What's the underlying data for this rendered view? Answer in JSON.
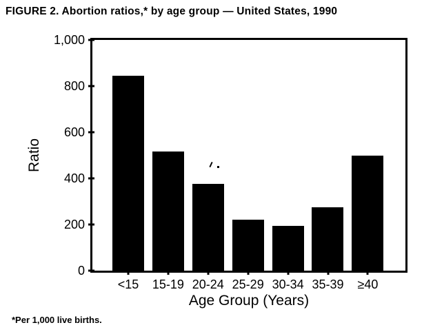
{
  "figure": {
    "title": "FIGURE 2. Abortion ratios,* by age group — United States, 1990",
    "footnote": "*Per 1,000 live births."
  },
  "chart_data": {
    "type": "bar",
    "title": "FIGURE 2. Abortion ratios,* by age group — United States, 1990",
    "categories": [
      "<15",
      "15-19",
      "20-24",
      "25-29",
      "30-34",
      "35-39",
      "≥40"
    ],
    "values": [
      845,
      515,
      375,
      220,
      195,
      275,
      500
    ],
    "xlabel": "Age Group (Years)",
    "ylabel": "Ratio",
    "ylim": [
      0,
      1000
    ],
    "yticks": [
      0,
      200,
      400,
      600,
      800,
      1000
    ],
    "ytick_labels": [
      "0",
      "200",
      "400",
      "600",
      "800",
      "1,000"
    ],
    "footnote": "*Per 1,000 live births.",
    "bar_color": "#000000",
    "axis_color": "#000000",
    "background_color": "#ffffff",
    "grid": false,
    "legend": false
  }
}
